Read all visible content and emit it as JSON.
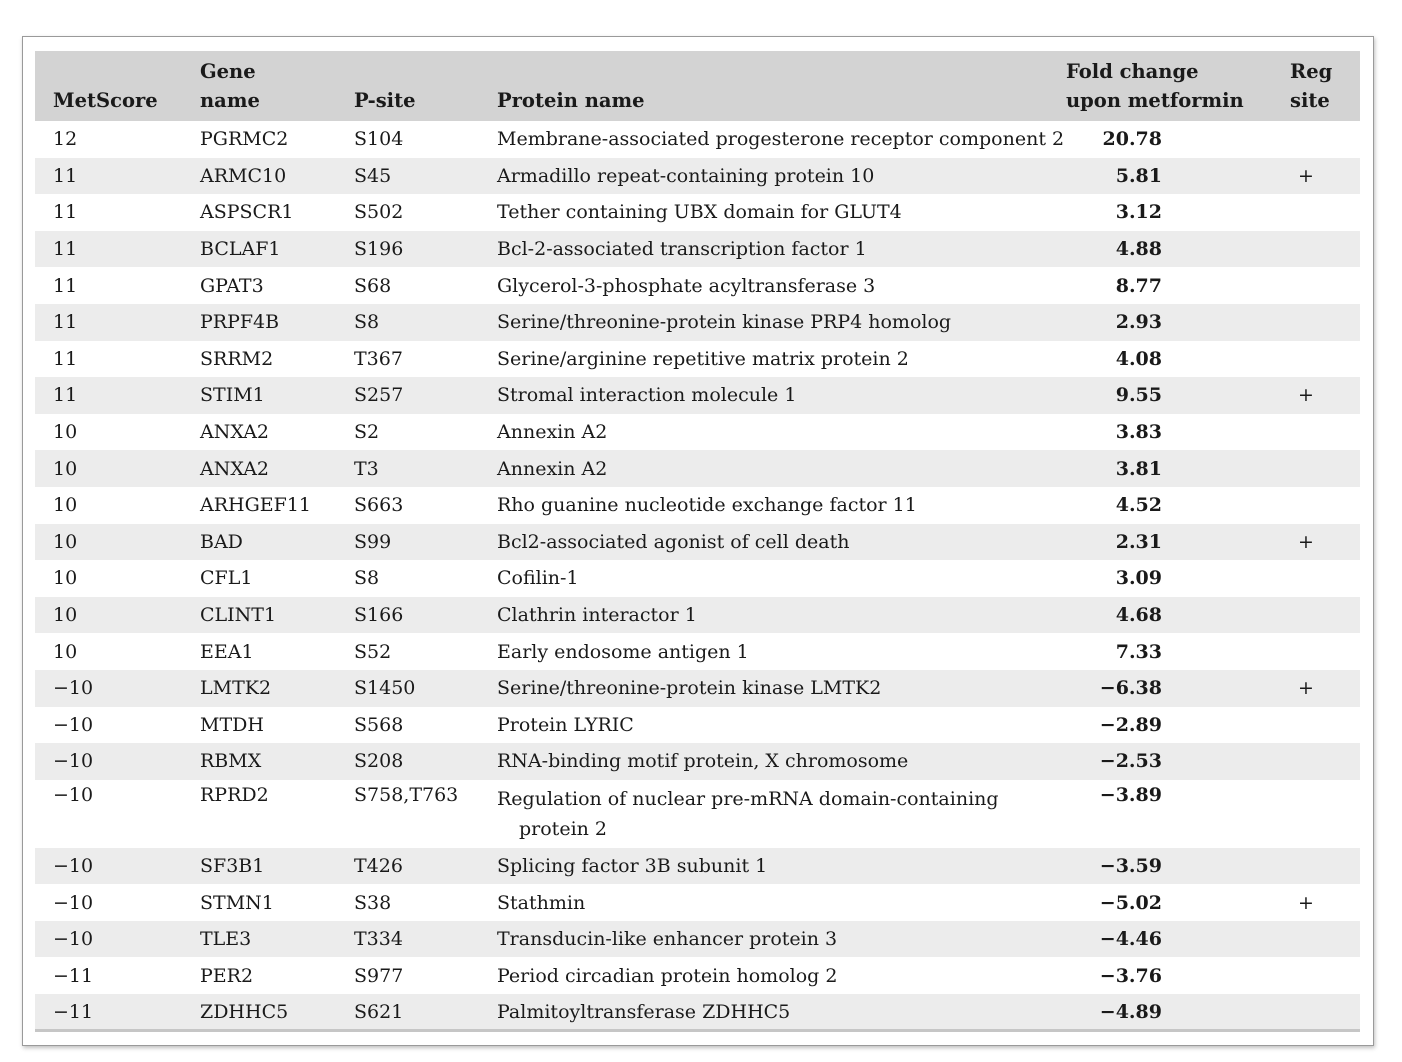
{
  "table": {
    "headers": {
      "metscore": "MetScore",
      "gene_name_line1": "Gene",
      "gene_name_line2": "name",
      "psite": "P-site",
      "protein_name": "Protein name",
      "fold_line1": "Fold change",
      "fold_line2": "upon metformin",
      "reg_line1": "Reg",
      "reg_line2": "site"
    },
    "rows": [
      {
        "metscore": "12",
        "gene": "PGRMC2",
        "psite": "S104",
        "protein": "Membrane-associated progesterone receptor component 2",
        "fold": "20.78",
        "reg": ""
      },
      {
        "metscore": "11",
        "gene": "ARMC10",
        "psite": "S45",
        "protein": "Armadillo repeat-containing protein 10",
        "fold": "5.81",
        "reg": "+"
      },
      {
        "metscore": "11",
        "gene": "ASPSCR1",
        "psite": "S502",
        "protein": "Tether containing UBX domain for GLUT4",
        "fold": "3.12",
        "reg": ""
      },
      {
        "metscore": "11",
        "gene": "BCLAF1",
        "psite": "S196",
        "protein": "Bcl-2-associated transcription factor 1",
        "fold": "4.88",
        "reg": ""
      },
      {
        "metscore": "11",
        "gene": "GPAT3",
        "psite": "S68",
        "protein": "Glycerol-3-phosphate acyltransferase 3",
        "fold": "8.77",
        "reg": ""
      },
      {
        "metscore": "11",
        "gene": "PRPF4B",
        "psite": "S8",
        "protein": "Serine/threonine-protein kinase PRP4 homolog",
        "fold": "2.93",
        "reg": ""
      },
      {
        "metscore": "11",
        "gene": "SRRM2",
        "psite": "T367",
        "protein": "Serine/arginine repetitive matrix protein 2",
        "fold": "4.08",
        "reg": ""
      },
      {
        "metscore": "11",
        "gene": "STIM1",
        "psite": "S257",
        "protein": "Stromal interaction molecule 1",
        "fold": "9.55",
        "reg": "+"
      },
      {
        "metscore": "10",
        "gene": "ANXA2",
        "psite": "S2",
        "protein": "Annexin A2",
        "fold": "3.83",
        "reg": ""
      },
      {
        "metscore": "10",
        "gene": "ANXA2",
        "psite": "T3",
        "protein": "Annexin A2",
        "fold": "3.81",
        "reg": ""
      },
      {
        "metscore": "10",
        "gene": "ARHGEF11",
        "psite": "S663",
        "protein": "Rho guanine nucleotide exchange factor 11",
        "fold": "4.52",
        "reg": ""
      },
      {
        "metscore": "10",
        "gene": "BAD",
        "psite": "S99",
        "protein": "Bcl2-associated agonist of cell death",
        "fold": "2.31",
        "reg": "+"
      },
      {
        "metscore": "10",
        "gene": "CFL1",
        "psite": "S8",
        "protein": "Cofilin-1",
        "fold": "3.09",
        "reg": ""
      },
      {
        "metscore": "10",
        "gene": "CLINT1",
        "psite": "S166",
        "protein": "Clathrin interactor 1",
        "fold": "4.68",
        "reg": ""
      },
      {
        "metscore": "10",
        "gene": "EEA1",
        "psite": "S52",
        "protein": "Early endosome antigen 1",
        "fold": "7.33",
        "reg": ""
      },
      {
        "metscore": "−10",
        "gene": "LMTK2",
        "psite": "S1450",
        "protein": "Serine/threonine-protein kinase LMTK2",
        "fold": "−6.38",
        "reg": "+"
      },
      {
        "metscore": "−10",
        "gene": "MTDH",
        "psite": "S568",
        "protein": "Protein LYRIC",
        "fold": "−2.89",
        "reg": ""
      },
      {
        "metscore": "−10",
        "gene": "RBMX",
        "psite": "S208",
        "protein": "RNA-binding motif protein, X chromosome",
        "fold": "−2.53",
        "reg": ""
      },
      {
        "metscore": "−10",
        "gene": "RPRD2",
        "psite": "S758,T763",
        "protein": "Regulation of nuclear pre-mRNA domain-containing",
        "protein_cont": "protein 2",
        "fold": "−3.89",
        "reg": ""
      },
      {
        "metscore": "−10",
        "gene": "SF3B1",
        "psite": "T426",
        "protein": "Splicing factor 3B subunit 1",
        "fold": "−3.59",
        "reg": ""
      },
      {
        "metscore": "−10",
        "gene": "STMN1",
        "psite": "S38",
        "protein": "Stathmin",
        "fold": "−5.02",
        "reg": "+"
      },
      {
        "metscore": "−10",
        "gene": "TLE3",
        "psite": "T334",
        "protein": "Transducin-like enhancer protein 3",
        "fold": "−4.46",
        "reg": ""
      },
      {
        "metscore": "−11",
        "gene": "PER2",
        "psite": "S977",
        "protein": "Period circadian protein homolog 2",
        "fold": "−3.76",
        "reg": ""
      },
      {
        "metscore": "−11",
        "gene": "ZDHHC5",
        "psite": "S621",
        "protein": "Palmitoyltransferase ZDHHC5",
        "fold": "−4.89",
        "reg": ""
      }
    ]
  }
}
